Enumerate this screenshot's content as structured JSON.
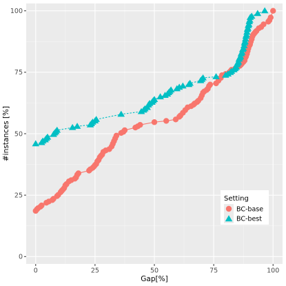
{
  "chart_data": {
    "type": "line",
    "title": "",
    "xlabel": "Gap[%]",
    "ylabel": "#instances [%]",
    "xlim": [
      -4,
      104
    ],
    "ylim": [
      -3,
      103
    ],
    "x_ticks": [
      0,
      25,
      50,
      75,
      100
    ],
    "y_ticks": [
      0,
      25,
      50,
      75,
      100
    ],
    "grid": true,
    "background": "#ebebeb",
    "legend": {
      "title": "Setting",
      "position": "bottom-right",
      "entries": [
        "BC-base",
        "BC-best"
      ]
    },
    "series": [
      {
        "name": "BC-base",
        "color": "#f8766d",
        "marker": "circle",
        "line": "solid",
        "points": [
          [
            0,
            18.6
          ],
          [
            0.5,
            19.2
          ],
          [
            1,
            19.7
          ],
          [
            2,
            20.3
          ],
          [
            2.5,
            20.8
          ],
          [
            4.5,
            21.9
          ],
          [
            5.5,
            22.4
          ],
          [
            7,
            23.0
          ],
          [
            7.5,
            23.5
          ],
          [
            9,
            24.6
          ],
          [
            9.5,
            25.1
          ],
          [
            10.5,
            26.2
          ],
          [
            11,
            26.8
          ],
          [
            11.5,
            27.3
          ],
          [
            12,
            27.9
          ],
          [
            12.5,
            29.0
          ],
          [
            13,
            29.5
          ],
          [
            14,
            30.6
          ],
          [
            15,
            31.1
          ],
          [
            16.5,
            31.7
          ],
          [
            17,
            32.2
          ],
          [
            17.5,
            33.3
          ],
          [
            18,
            33.9
          ],
          [
            22.5,
            35.0
          ],
          [
            23,
            35.5
          ],
          [
            24,
            36.1
          ],
          [
            24.5,
            36.6
          ],
          [
            25,
            37.2
          ],
          [
            25.5,
            37.7
          ],
          [
            26,
            38.8
          ],
          [
            26.5,
            39.3
          ],
          [
            27,
            40.4
          ],
          [
            27.5,
            41.0
          ],
          [
            28,
            41.5
          ],
          [
            28.5,
            42.6
          ],
          [
            29.5,
            43.2
          ],
          [
            31,
            43.7
          ],
          [
            32,
            44.8
          ],
          [
            32.5,
            45.9
          ],
          [
            33,
            47.0
          ],
          [
            33.5,
            48.1
          ],
          [
            34,
            49.2
          ],
          [
            36,
            50.3
          ],
          [
            37,
            50.8
          ],
          [
            37.5,
            51.4
          ],
          [
            42,
            52.5
          ],
          [
            43,
            53.0
          ],
          [
            44,
            53.6
          ],
          [
            50,
            54.7
          ],
          [
            55,
            55.2
          ],
          [
            59,
            55.8
          ],
          [
            60.5,
            56.9
          ],
          [
            61,
            57.4
          ],
          [
            62,
            58.5
          ],
          [
            63,
            59.6
          ],
          [
            64,
            60.7
          ],
          [
            65.5,
            61.2
          ],
          [
            66.5,
            61.8
          ],
          [
            67,
            62.3
          ],
          [
            68,
            62.9
          ],
          [
            68.5,
            63.4
          ],
          [
            69.5,
            64.5
          ],
          [
            70,
            65.6
          ],
          [
            70.5,
            66.7
          ],
          [
            71,
            67.2
          ],
          [
            72,
            67.8
          ],
          [
            72.5,
            68.3
          ],
          [
            73,
            69.4
          ],
          [
            73.5,
            70.0
          ],
          [
            76,
            70.5
          ],
          [
            77,
            71.6
          ],
          [
            78,
            72.7
          ],
          [
            78.5,
            73.8
          ],
          [
            80,
            74.3
          ],
          [
            81.5,
            74.9
          ],
          [
            82,
            75.4
          ],
          [
            82.5,
            76.0
          ],
          [
            84,
            76.5
          ],
          [
            85,
            77.1
          ],
          [
            86,
            77.6
          ],
          [
            86.5,
            78.1
          ],
          [
            87,
            78.7
          ],
          [
            87.5,
            79.2
          ],
          [
            88,
            79.8
          ],
          [
            88.3,
            80.9
          ],
          [
            88.6,
            81.4
          ],
          [
            89,
            82.5
          ],
          [
            89.3,
            83.6
          ],
          [
            89.6,
            84.7
          ],
          [
            90,
            85.8
          ],
          [
            90.3,
            86.3
          ],
          [
            90.6,
            87.4
          ],
          [
            91,
            88.5
          ],
          [
            91.3,
            89.6
          ],
          [
            91.6,
            90.2
          ],
          [
            92,
            90.7
          ],
          [
            92.5,
            91.3
          ],
          [
            93,
            91.8
          ],
          [
            94,
            92.9
          ],
          [
            95,
            93.4
          ],
          [
            96,
            94.5
          ],
          [
            98,
            95.6
          ],
          [
            98.5,
            96.2
          ],
          [
            99,
            97.3
          ],
          [
            100,
            100
          ]
        ]
      },
      {
        "name": "BC-best",
        "color": "#00bfc4",
        "marker": "triangle",
        "line": "dashed",
        "points": [
          [
            0,
            45.9
          ],
          [
            2.5,
            46.4
          ],
          [
            3,
            47.0
          ],
          [
            4,
            47.5
          ],
          [
            4.5,
            48.1
          ],
          [
            5,
            48.6
          ],
          [
            7.5,
            49.7
          ],
          [
            8,
            50.3
          ],
          [
            8.5,
            50.8
          ],
          [
            9,
            51.4
          ],
          [
            15.5,
            52.5
          ],
          [
            17.5,
            53.0
          ],
          [
            23,
            53.6
          ],
          [
            23.5,
            54.1
          ],
          [
            24,
            54.7
          ],
          [
            25,
            55.2
          ],
          [
            25.5,
            55.8
          ],
          [
            36,
            57.9
          ],
          [
            44.5,
            59.0
          ],
          [
            45.5,
            59.6
          ],
          [
            46,
            60.1
          ],
          [
            47,
            60.7
          ],
          [
            47.5,
            61.7
          ],
          [
            48,
            62.3
          ],
          [
            49,
            62.8
          ],
          [
            49.5,
            63.4
          ],
          [
            50,
            63.9
          ],
          [
            52.5,
            65.0
          ],
          [
            54.5,
            65.6
          ],
          [
            55.5,
            66.1
          ],
          [
            56,
            66.7
          ],
          [
            56.5,
            67.2
          ],
          [
            57,
            67.8
          ],
          [
            59.5,
            68.3
          ],
          [
            60.5,
            68.9
          ],
          [
            62,
            69.4
          ],
          [
            64.5,
            70.0
          ],
          [
            65,
            70.5
          ],
          [
            69.5,
            71.6
          ],
          [
            70,
            72.1
          ],
          [
            70.5,
            72.7
          ],
          [
            76,
            73.2
          ],
          [
            80,
            73.8
          ],
          [
            81,
            74.3
          ],
          [
            82,
            74.9
          ],
          [
            82.5,
            75.4
          ],
          [
            83.5,
            76.0
          ],
          [
            84,
            76.5
          ],
          [
            84.5,
            77.0
          ],
          [
            84.8,
            78.1
          ],
          [
            85.1,
            78.7
          ],
          [
            85.4,
            79.2
          ],
          [
            85.7,
            80.3
          ],
          [
            86,
            80.9
          ],
          [
            86.3,
            81.4
          ],
          [
            86.6,
            82.5
          ],
          [
            86.9,
            83.1
          ],
          [
            87.2,
            84.2
          ],
          [
            87.5,
            84.7
          ],
          [
            87.8,
            85.8
          ],
          [
            88,
            86.9
          ],
          [
            88.2,
            87.5
          ],
          [
            88.4,
            88.5
          ],
          [
            88.6,
            89.6
          ],
          [
            88.8,
            90.2
          ],
          [
            89,
            91.3
          ],
          [
            89.2,
            92.4
          ],
          [
            89.4,
            92.9
          ],
          [
            89.6,
            94.0
          ],
          [
            89.8,
            94.5
          ],
          [
            90,
            95.6
          ],
          [
            90.2,
            96.2
          ],
          [
            90.4,
            97.3
          ],
          [
            91,
            97.8
          ],
          [
            93.5,
            98.9
          ],
          [
            96.5,
            100
          ]
        ]
      }
    ]
  }
}
